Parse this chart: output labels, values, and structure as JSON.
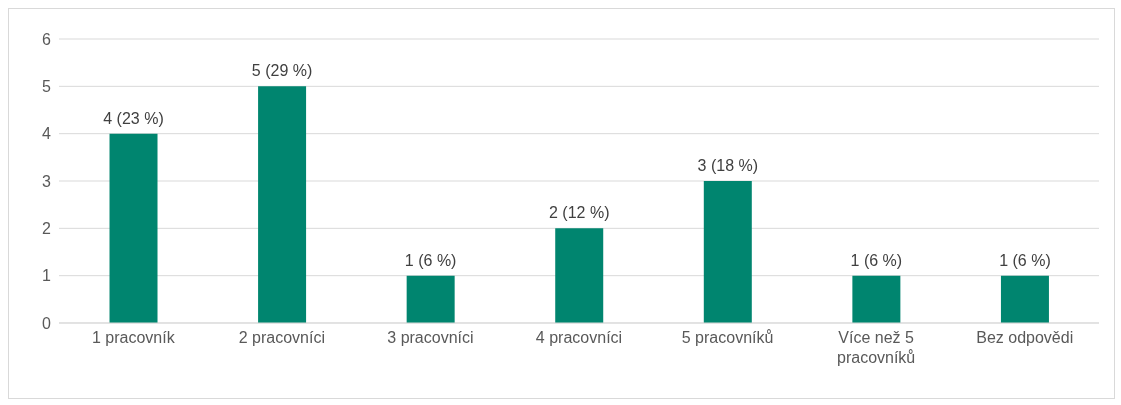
{
  "chart_data": {
    "type": "bar",
    "categories": [
      "1 pracovník",
      "2 pracovníci",
      "3 pracovníci",
      "4 pracovníci",
      "5 pracovníků",
      "Více než 5 pracovníků",
      "Bez odpovědi"
    ],
    "values": [
      4,
      5,
      1,
      2,
      3,
      1,
      1
    ],
    "value_labels": [
      "4 (23 %)",
      "5 (29 %)",
      "1 (6 %)",
      "2 (12 %)",
      "3 (18 %)",
      "1 (6 %)",
      "1 (6 %)"
    ],
    "color": "#00856f",
    "ylim": [
      0,
      6
    ],
    "yticks": [
      0,
      1,
      2,
      3,
      4,
      5,
      6
    ],
    "grid": "y",
    "legend": false
  }
}
